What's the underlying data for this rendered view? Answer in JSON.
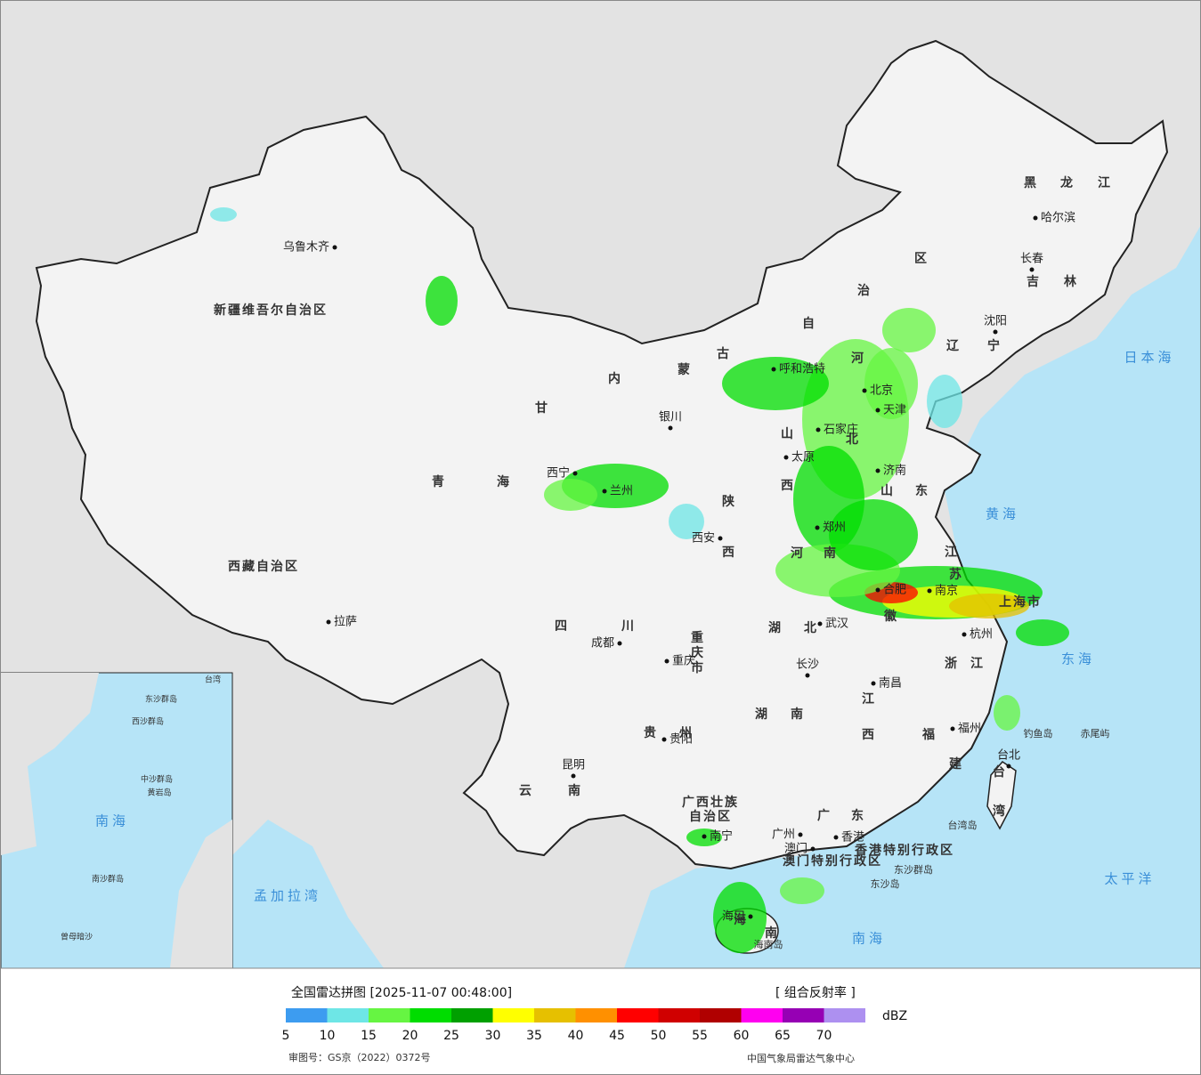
{
  "map": {
    "provinces": [
      "新疆维吾尔自治区",
      "西藏自治区",
      "青",
      "海",
      "甘",
      "内",
      "蒙",
      "古",
      "自",
      "治",
      "区",
      "黑",
      "龙",
      "江",
      "吉",
      "林",
      "辽",
      "宁",
      "河",
      "北",
      "山",
      "西",
      "山",
      "东",
      "陕",
      "西",
      "河",
      "南",
      "江",
      "苏",
      "徽",
      "湖",
      "北",
      "四",
      "川",
      "重",
      "庆",
      "市",
      "浙",
      "江",
      "江",
      "西",
      "湖",
      "南",
      "贵",
      "州",
      "福",
      "建",
      "云",
      "南",
      "广西壮族",
      "自治区",
      "广",
      "东",
      "台",
      "湾",
      "海",
      "南",
      "上海市",
      "香港特别行政区",
      "澳门特别行政区"
    ],
    "cities": [
      "乌鲁木齐",
      "拉萨",
      "西宁",
      "兰州",
      "银川",
      "呼和浩特",
      "北京",
      "天津",
      "石家庄",
      "太原",
      "济南",
      "郑州",
      "西安",
      "合肥",
      "南京",
      "杭州",
      "武汉",
      "成都",
      "重庆",
      "长沙",
      "南昌",
      "福州",
      "贵阳",
      "昆明",
      "南宁",
      "广州",
      "香港",
      "澳门",
      "海口",
      "台北",
      "哈尔滨",
      "长春",
      "沈阳"
    ],
    "places": [
      "日本海",
      "黄海",
      "东海",
      "太平洋",
      "孟加拉湾",
      "南海",
      "钓鱼岛",
      "赤尾屿",
      "台湾岛",
      "东沙群岛",
      "东沙岛",
      "海南岛"
    ],
    "inset": [
      "南海",
      "南沙群岛",
      "中沙群岛",
      "西沙群岛",
      "黄岩岛",
      "台湾",
      "曾母暗沙",
      "东沙群岛"
    ]
  },
  "legend": {
    "title": "全国雷达拼图 [2025-11-07 00:48:00]",
    "product": "[ 组合反射率 ]",
    "unit": "dBZ",
    "colors": [
      "#3d9cf0",
      "#6ee6e6",
      "#66f542",
      "#00dd00",
      "#00a000",
      "#ffff00",
      "#e6c000",
      "#ff9000",
      "#ff0000",
      "#d00000",
      "#b00000",
      "#ff00f0",
      "#9600b4",
      "#ad90f0"
    ],
    "ticks": [
      5,
      10,
      15,
      20,
      25,
      30,
      35,
      40,
      45,
      50,
      55,
      60,
      65,
      70
    ],
    "approval": "审图号：GS京（2022）0372号",
    "credit": "中国气象局雷达气象中心"
  }
}
